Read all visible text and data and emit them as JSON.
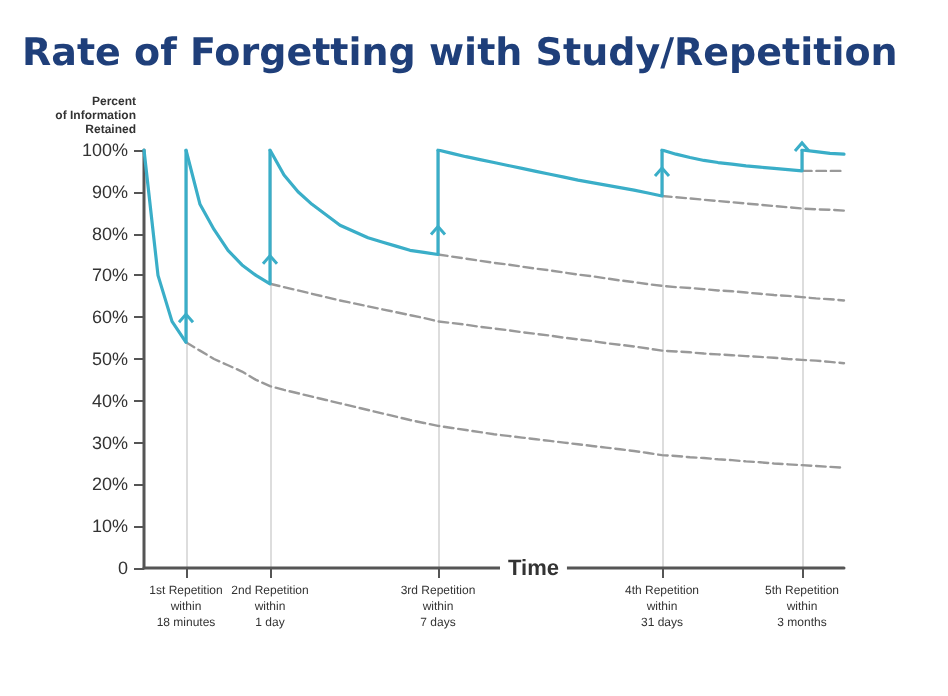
{
  "chart_data": {
    "type": "line",
    "title": "Rate of Forgetting with Study/Repetition",
    "xlabel": "Time",
    "ylabel": "Percent\nof Information\nRetained",
    "categories": [
      null,
      null,
      null,
      "1st Repetition\nwithin\n18 minutes",
      null,
      null,
      null,
      null,
      null,
      "2nd Repetition\nwithin\n1 day",
      null,
      null,
      null,
      null,
      null,
      null,
      null,
      null,
      null,
      null,
      null,
      "3rd Repetition\nwithin\n7 days",
      null,
      null,
      null,
      null,
      null,
      null,
      null,
      null,
      null,
      null,
      null,
      null,
      null,
      null,
      null,
      "4th Repetition\nwithin\n31 days",
      null,
      null,
      null,
      null,
      null,
      null,
      null,
      null,
      null,
      "5th Repetition\nwithin\n3 months",
      null,
      null,
      null
    ],
    "ylim": [
      0,
      100
    ],
    "yticks": [
      0,
      {
        "value": 10,
        "label": "10%"
      },
      {
        "value": 20,
        "label": "20%"
      },
      {
        "value": 30,
        "label": "30%"
      },
      {
        "value": 40,
        "label": "40%"
      },
      {
        "value": 50,
        "label": "50%"
      },
      {
        "value": 60,
        "label": "60%"
      },
      {
        "value": 70,
        "label": "70%"
      },
      {
        "value": 80,
        "label": "80%"
      },
      {
        "value": 90,
        "label": "90%"
      },
      {
        "value": 100,
        "label": "100%"
      }
    ],
    "grid": "x",
    "marker": "none",
    "series": [
      {
        "color": "#3aaec8",
        "line_style": "solid",
        "values": [
          100,
          70,
          59,
          54,
          null,
          null,
          null,
          null,
          null,
          null,
          null,
          null,
          null,
          null,
          null,
          null,
          null,
          null,
          null,
          null,
          null,
          null,
          null,
          null,
          null,
          null,
          null,
          null,
          null,
          null,
          null,
          null,
          null,
          null,
          null,
          null,
          null,
          null,
          null,
          null,
          null,
          null,
          null,
          null,
          null,
          null,
          null,
          null,
          null,
          null,
          null
        ]
      },
      {
        "color": "#3aaec8",
        "line_style": "solid",
        "values": [
          null,
          null,
          null,
          100,
          87,
          81,
          76,
          72.5,
          70,
          68,
          null,
          null,
          null,
          null,
          null,
          null,
          null,
          null,
          null,
          null,
          null,
          null,
          null,
          null,
          null,
          null,
          null,
          null,
          null,
          null,
          null,
          null,
          null,
          null,
          null,
          null,
          null,
          null,
          null,
          null,
          null,
          null,
          null,
          null,
          null,
          null,
          null,
          null,
          null,
          null,
          null
        ]
      },
      {
        "color": "#3aaec8",
        "line_style": "solid",
        "values": [
          null,
          null,
          null,
          null,
          null,
          null,
          null,
          null,
          null,
          100,
          94,
          90,
          87,
          84.5,
          82,
          80.5,
          79,
          78,
          77,
          76,
          75.5,
          75,
          null,
          null,
          null,
          null,
          null,
          null,
          null,
          null,
          null,
          null,
          null,
          null,
          null,
          null,
          null,
          null,
          null,
          null,
          null,
          null,
          null,
          null,
          null,
          null,
          null,
          null,
          null,
          null,
          null
        ]
      },
      {
        "color": "#3aaec8",
        "line_style": "solid",
        "values": [
          null,
          null,
          null,
          null,
          null,
          null,
          null,
          null,
          null,
          null,
          null,
          null,
          null,
          null,
          null,
          null,
          null,
          null,
          null,
          null,
          null,
          100,
          99.2,
          98.4,
          97.7,
          97,
          96.3,
          95.6,
          94.9,
          94.2,
          93.5,
          92.8,
          92.2,
          91.6,
          91,
          90.4,
          89.7,
          89,
          null,
          null,
          null,
          null,
          null,
          null,
          null,
          null,
          null,
          null,
          null,
          null,
          null
        ]
      },
      {
        "color": "#3aaec8",
        "line_style": "solid",
        "values": [
          null,
          null,
          null,
          null,
          null,
          null,
          null,
          null,
          null,
          null,
          null,
          null,
          null,
          null,
          null,
          null,
          null,
          null,
          null,
          null,
          null,
          null,
          null,
          null,
          null,
          null,
          null,
          null,
          null,
          null,
          null,
          null,
          null,
          null,
          null,
          null,
          null,
          100,
          99,
          98.2,
          97.5,
          97,
          96.6,
          96.2,
          95.9,
          95.6,
          95.3,
          95,
          null,
          null,
          null
        ]
      },
      {
        "color": "#3aaec8",
        "line_style": "solid",
        "values": [
          null,
          null,
          null,
          null,
          null,
          null,
          null,
          null,
          null,
          null,
          null,
          null,
          null,
          null,
          null,
          null,
          null,
          null,
          null,
          null,
          null,
          null,
          null,
          null,
          null,
          null,
          null,
          null,
          null,
          null,
          null,
          null,
          null,
          null,
          null,
          null,
          null,
          null,
          null,
          null,
          null,
          null,
          null,
          null,
          null,
          null,
          null,
          100,
          99.6,
          99.2,
          99
        ]
      },
      {
        "color": "#999999",
        "line_style": "dashed",
        "values": [
          null,
          null,
          null,
          54,
          52,
          50,
          48.5,
          47,
          45,
          43.5,
          42.6,
          41.8,
          41,
          40.2,
          39.4,
          38.6,
          37.8,
          37,
          36.2,
          35.4,
          34.7,
          34,
          33.5,
          33,
          32.5,
          32,
          31.6,
          31.2,
          30.8,
          30.4,
          30,
          29.6,
          29.2,
          28.8,
          28.4,
          28,
          27.5,
          27,
          26.8,
          26.5,
          26.3,
          26,
          25.8,
          25.5,
          25.3,
          25,
          24.8,
          24.6,
          24.4,
          24.2,
          24
        ]
      },
      {
        "color": "#999999",
        "line_style": "dashed",
        "values": [
          null,
          null,
          null,
          null,
          null,
          null,
          null,
          null,
          null,
          68,
          67.2,
          66.4,
          65.6,
          64.8,
          64,
          63.3,
          62.6,
          61.9,
          61.2,
          60.5,
          59.8,
          59,
          58.6,
          58.2,
          57.7,
          57.3,
          56.9,
          56.4,
          56,
          55.6,
          55.1,
          54.7,
          54.3,
          53.8,
          53.4,
          53,
          52.5,
          52,
          51.8,
          51.6,
          51.3,
          51.1,
          50.9,
          50.7,
          50.5,
          50.3,
          50,
          49.8,
          49.6,
          49.3,
          49
        ]
      },
      {
        "color": "#999999",
        "line_style": "dashed",
        "values": [
          null,
          null,
          null,
          null,
          null,
          null,
          null,
          null,
          null,
          null,
          null,
          null,
          null,
          null,
          null,
          null,
          null,
          null,
          null,
          null,
          null,
          75,
          74.5,
          74,
          73.5,
          73,
          72.6,
          72.1,
          71.6,
          71.2,
          70.7,
          70.2,
          69.8,
          69.3,
          68.8,
          68.4,
          67.9,
          67.5,
          67.2,
          67,
          66.7,
          66.4,
          66.2,
          65.9,
          65.6,
          65.3,
          65.1,
          64.8,
          64.5,
          64.3,
          64
        ]
      },
      {
        "color": "#999999",
        "line_style": "dashed",
        "values": [
          null,
          null,
          null,
          null,
          null,
          null,
          null,
          null,
          null,
          null,
          null,
          null,
          null,
          null,
          null,
          null,
          null,
          null,
          null,
          null,
          null,
          null,
          null,
          null,
          null,
          null,
          null,
          null,
          null,
          null,
          null,
          null,
          null,
          null,
          null,
          null,
          null,
          89,
          88.7,
          88.4,
          88.1,
          87.8,
          87.5,
          87.2,
          86.9,
          86.6,
          86.3,
          86,
          85.8,
          85.7,
          85.5
        ]
      },
      {
        "color": "#999999",
        "line_style": "dashed",
        "values": [
          null,
          null,
          null,
          null,
          null,
          null,
          null,
          null,
          null,
          null,
          null,
          null,
          null,
          null,
          null,
          null,
          null,
          null,
          null,
          null,
          null,
          null,
          null,
          null,
          null,
          null,
          null,
          null,
          null,
          null,
          null,
          null,
          null,
          null,
          null,
          null,
          null,
          null,
          null,
          null,
          null,
          null,
          null,
          null,
          null,
          null,
          null,
          95,
          95,
          95,
          95
        ]
      }
    ]
  }
}
